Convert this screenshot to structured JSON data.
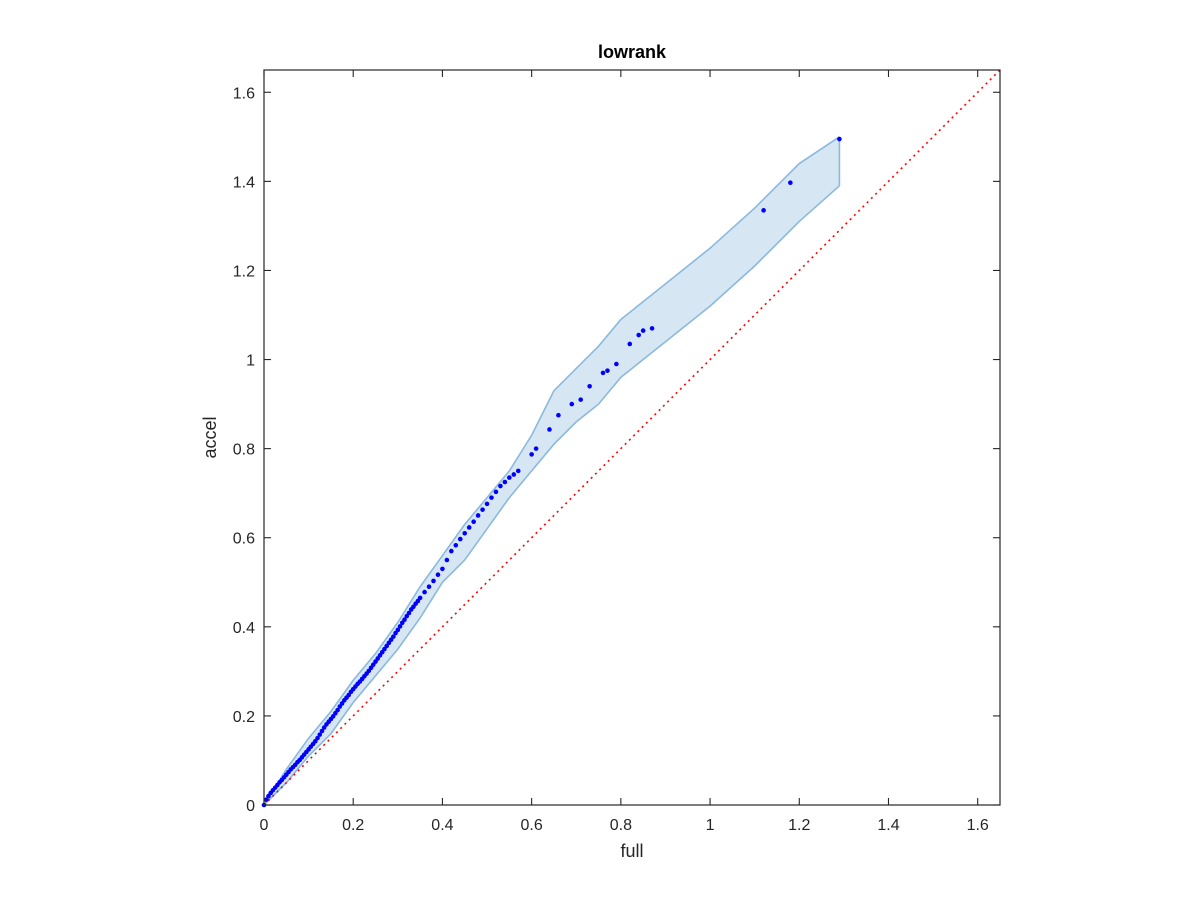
{
  "chart_data": {
    "type": "scatter",
    "title": "lowrank",
    "xlabel": "full",
    "ylabel": "accel",
    "xlim": [
      0,
      1.65
    ],
    "ylim": [
      0,
      1.65
    ],
    "xticks": [
      0,
      0.2,
      0.4,
      0.6,
      0.8,
      1,
      1.2,
      1.4,
      1.6
    ],
    "yticks": [
      0,
      0.2,
      0.4,
      0.6,
      0.8,
      1,
      1.2,
      1.4,
      1.6
    ],
    "xtick_labels": [
      "0",
      "0.2",
      "0.4",
      "0.6",
      "0.8",
      "1",
      "1.2",
      "1.4",
      "1.6"
    ],
    "ytick_labels": [
      "0",
      "0.2",
      "0.4",
      "0.6",
      "0.8",
      "1",
      "1.2",
      "1.4",
      "1.6"
    ],
    "grid": false,
    "colors": {
      "points": "#0000ff",
      "band_fill": "#d6e7f3",
      "band_edge": "#8ab9dd",
      "reference_line": "#ff0000",
      "axes": "#262626"
    },
    "reference_line": {
      "x": [
        0,
        1.65
      ],
      "y": [
        0,
        1.65
      ],
      "style": "dotted"
    },
    "band": {
      "x": [
        0,
        0.05,
        0.1,
        0.15,
        0.2,
        0.25,
        0.3,
        0.35,
        0.4,
        0.45,
        0.5,
        0.55,
        0.6,
        0.65,
        0.7,
        0.75,
        0.8,
        0.85,
        0.9,
        1.0,
        1.1,
        1.2,
        1.29
      ],
      "upper": [
        0,
        0.08,
        0.15,
        0.21,
        0.28,
        0.34,
        0.41,
        0.49,
        0.56,
        0.63,
        0.69,
        0.75,
        0.83,
        0.93,
        0.98,
        1.03,
        1.09,
        1.13,
        1.17,
        1.25,
        1.34,
        1.44,
        1.5
      ],
      "lower": [
        0,
        0.05,
        0.11,
        0.16,
        0.23,
        0.29,
        0.35,
        0.42,
        0.5,
        0.55,
        0.62,
        0.69,
        0.75,
        0.81,
        0.86,
        0.9,
        0.96,
        1.0,
        1.04,
        1.12,
        1.21,
        1.31,
        1.39
      ]
    },
    "series": [
      {
        "x": [
          0,
          0.005,
          0.01,
          0.015,
          0.02,
          0.025,
          0.03,
          0.035,
          0.04,
          0.045,
          0.05,
          0.055,
          0.06,
          0.065,
          0.07,
          0.075,
          0.08,
          0.085,
          0.09,
          0.095,
          0.1,
          0.105,
          0.11,
          0.115,
          0.12,
          0.125,
          0.13,
          0.135,
          0.14,
          0.145,
          0.15,
          0.155,
          0.16,
          0.165,
          0.17,
          0.175,
          0.18,
          0.185,
          0.19,
          0.195,
          0.2,
          0.205,
          0.21,
          0.215,
          0.22,
          0.225,
          0.23,
          0.235,
          0.24,
          0.245,
          0.25,
          0.255,
          0.26,
          0.265,
          0.27,
          0.275,
          0.28,
          0.285,
          0.29,
          0.295,
          0.3,
          0.305,
          0.31,
          0.315,
          0.32,
          0.325,
          0.33,
          0.335,
          0.34,
          0.345,
          0.35,
          0.36,
          0.37,
          0.38,
          0.39,
          0.4,
          0.41,
          0.42,
          0.43,
          0.44,
          0.45,
          0.46,
          0.47,
          0.48,
          0.49,
          0.5,
          0.51,
          0.52,
          0.53,
          0.54,
          0.55,
          0.56,
          0.57,
          0.6,
          0.61,
          0.64,
          0.66,
          0.69,
          0.71,
          0.73,
          0.76,
          0.77,
          0.79,
          0.82,
          0.84,
          0.85,
          0.87,
          1.12,
          1.18,
          1.29
        ],
        "y": [
          0,
          0.012,
          0.02,
          0.027,
          0.033,
          0.039,
          0.045,
          0.051,
          0.056,
          0.062,
          0.068,
          0.074,
          0.08,
          0.085,
          0.09,
          0.096,
          0.101,
          0.107,
          0.113,
          0.119,
          0.125,
          0.131,
          0.137,
          0.143,
          0.15,
          0.158,
          0.166,
          0.174,
          0.181,
          0.187,
          0.193,
          0.199,
          0.206,
          0.213,
          0.221,
          0.228,
          0.235,
          0.241,
          0.247,
          0.254,
          0.26,
          0.266,
          0.272,
          0.277,
          0.283,
          0.289,
          0.295,
          0.301,
          0.308,
          0.315,
          0.322,
          0.329,
          0.336,
          0.343,
          0.35,
          0.357,
          0.364,
          0.371,
          0.378,
          0.386,
          0.393,
          0.401,
          0.409,
          0.416,
          0.424,
          0.431,
          0.439,
          0.445,
          0.452,
          0.458,
          0.465,
          0.478,
          0.49,
          0.503,
          0.517,
          0.53,
          0.55,
          0.57,
          0.583,
          0.597,
          0.61,
          0.623,
          0.636,
          0.65,
          0.663,
          0.676,
          0.69,
          0.703,
          0.716,
          0.725,
          0.735,
          0.742,
          0.75,
          0.787,
          0.8,
          0.843,
          0.875,
          0.9,
          0.91,
          0.94,
          0.97,
          0.975,
          0.99,
          1.035,
          1.055,
          1.065,
          1.07,
          1.335,
          1.397,
          1.495
        ]
      }
    ]
  }
}
